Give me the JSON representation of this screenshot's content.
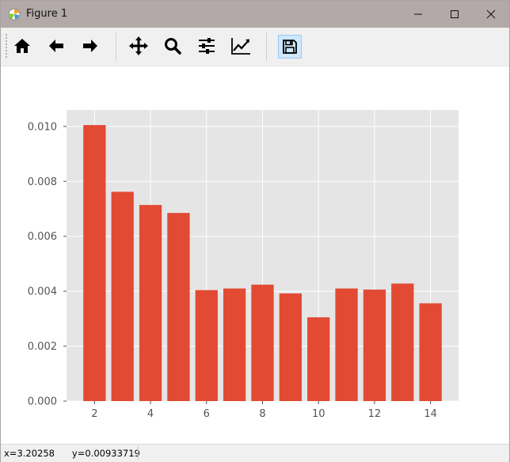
{
  "window": {
    "title": "Figure 1",
    "controls": [
      "minimize",
      "maximize",
      "close"
    ]
  },
  "toolbar": {
    "buttons": [
      {
        "name": "home-button",
        "icon": "home-icon",
        "tooltip": "Reset original view"
      },
      {
        "name": "back-button",
        "icon": "arrow-left-icon",
        "tooltip": "Back to previous view"
      },
      {
        "name": "forward-button",
        "icon": "arrow-right-icon",
        "tooltip": "Forward to next view"
      },
      {
        "name": "pan-button",
        "icon": "move-icon",
        "tooltip": "Pan axes"
      },
      {
        "name": "zoom-button",
        "icon": "magnifier-icon",
        "tooltip": "Zoom to rectangle"
      },
      {
        "name": "subplots-button",
        "icon": "sliders-icon",
        "tooltip": "Configure subplots"
      },
      {
        "name": "edit-axes-button",
        "icon": "chart-line-icon",
        "tooltip": "Edit axis"
      },
      {
        "name": "save-button",
        "icon": "floppy-disk-icon",
        "tooltip": "Save the figure"
      }
    ]
  },
  "status": {
    "coords": "x=3.20258      y=0.00933719"
  },
  "colors": {
    "bar": "#e24a33",
    "axes_bg": "#e5e5e5",
    "grid": "#ffffff",
    "tick_text": "#555555",
    "titlebar": "#b2a9a8",
    "toolbar": "#f0f0f0"
  },
  "chart_data": {
    "type": "bar",
    "title": "",
    "xlabel": "",
    "ylabel": "",
    "x": [
      2,
      3,
      4,
      5,
      6,
      7,
      8,
      9,
      10,
      11,
      12,
      13,
      14
    ],
    "values": [
      0.01005,
      0.00762,
      0.00714,
      0.00685,
      0.00404,
      0.0041,
      0.00424,
      0.00392,
      0.00305,
      0.0041,
      0.00406,
      0.00428,
      0.00356
    ],
    "xlim": [
      1.0,
      15.0
    ],
    "ylim": [
      0.0,
      0.0106
    ],
    "xticks": [
      2,
      4,
      6,
      8,
      10,
      12,
      14
    ],
    "xtick_labels": [
      "2",
      "4",
      "6",
      "8",
      "10",
      "12",
      "14"
    ],
    "yticks": [
      0.0,
      0.002,
      0.004,
      0.006,
      0.008,
      0.01
    ],
    "ytick_labels": [
      "0.000",
      "0.002",
      "0.004",
      "0.006",
      "0.008",
      "0.010"
    ],
    "bar_width": 0.8,
    "grid": true,
    "style": "ggplot"
  }
}
